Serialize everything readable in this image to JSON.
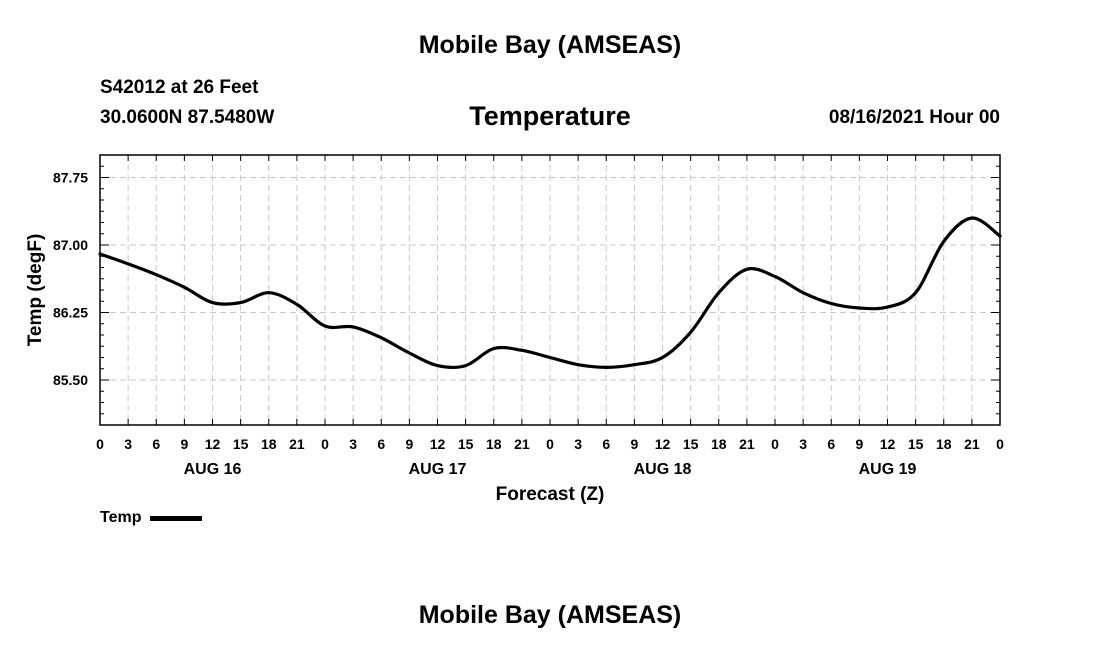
{
  "page": {
    "title": "Mobile Bay (AMSEAS)",
    "footer_title": "Mobile Bay (AMSEAS)",
    "station": "S42012 at 26 Feet",
    "coordinates": "30.0600N  87.5480W",
    "parameter": "Temperature",
    "timestamp": "08/16/2021 Hour 00"
  },
  "legend": {
    "label": "Temp",
    "color": "#000000"
  },
  "chart_data": {
    "type": "line",
    "title": "Temperature",
    "xlabel": "Forecast (Z)",
    "ylabel": "Temp (degF)",
    "xlim": [
      0,
      96
    ],
    "ylim": [
      85.0,
      88.0
    ],
    "grid": true,
    "x_tick_labels": [
      "0",
      "3",
      "6",
      "9",
      "12",
      "15",
      "18",
      "21",
      "0",
      "3",
      "6",
      "9",
      "12",
      "15",
      "18",
      "21",
      "0",
      "3",
      "6",
      "9",
      "12",
      "15",
      "18",
      "21",
      "0",
      "3",
      "6",
      "9",
      "12",
      "15",
      "18",
      "21",
      "0"
    ],
    "y_ticks": [
      85.5,
      86.25,
      87.0,
      87.75
    ],
    "y_tick_labels": [
      "85.50",
      "86.25",
      "87.00",
      "87.75"
    ],
    "day_labels": [
      {
        "label": "AUG 16",
        "center_hour": 12
      },
      {
        "label": "AUG 17",
        "center_hour": 36
      },
      {
        "label": "AUG 18",
        "center_hour": 60
      },
      {
        "label": "AUG 19",
        "center_hour": 84
      }
    ],
    "series": [
      {
        "name": "Temp",
        "x": [
          0,
          3,
          6,
          9,
          12,
          15,
          18,
          21,
          24,
          27,
          30,
          33,
          36,
          39,
          42,
          45,
          48,
          51,
          54,
          57,
          60,
          63,
          66,
          69,
          72,
          75,
          78,
          81,
          84,
          87,
          90,
          93,
          96
        ],
        "values": [
          86.9,
          86.79,
          86.67,
          86.53,
          86.36,
          86.36,
          86.47,
          86.34,
          86.1,
          86.09,
          85.97,
          85.8,
          85.66,
          85.66,
          85.85,
          85.83,
          85.75,
          85.67,
          85.64,
          85.67,
          85.75,
          86.03,
          86.47,
          86.73,
          86.65,
          86.47,
          86.35,
          86.3,
          86.31,
          86.47,
          87.04,
          87.3,
          87.1
        ]
      }
    ]
  }
}
